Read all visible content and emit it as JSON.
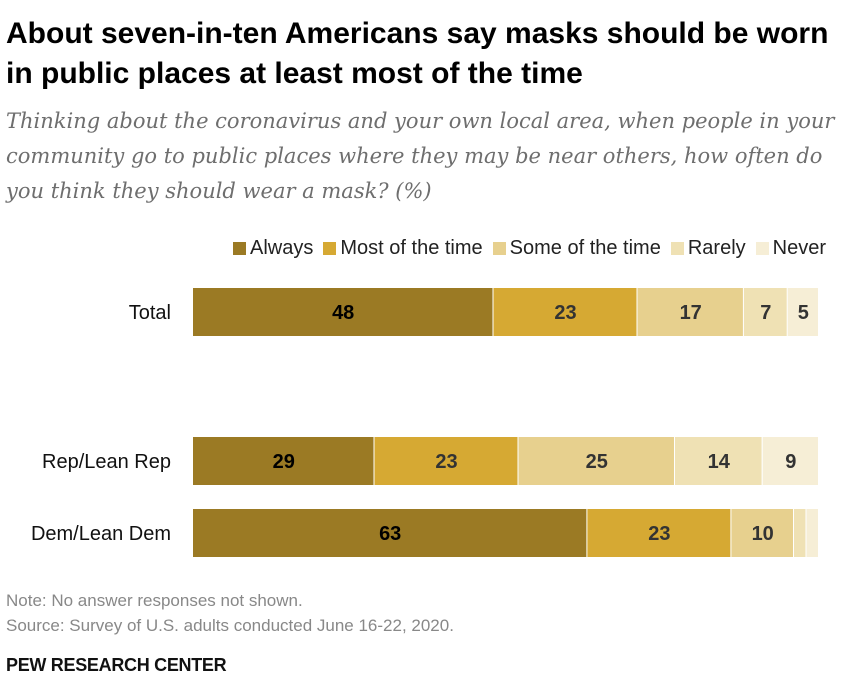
{
  "title": "About seven-in-ten Americans say masks should be worn in public places at least most of the time",
  "subtitle": "Thinking about the coronavirus and your own local area, when people in your community go to public places where they may be near others, how often do you think they should wear a mask? (%)",
  "note": "Note: No answer responses not shown.",
  "source": "Source: Survey of U.S. adults conducted June 16-22, 2020.",
  "brand": "PEW RESEARCH CENTER",
  "chart_data": {
    "type": "bar",
    "orientation": "horizontal",
    "stacked": true,
    "categories": [
      "Total",
      "Rep/Lean Rep",
      "Dem/Lean Dem"
    ],
    "series": [
      {
        "name": "Always",
        "values": [
          48,
          29,
          63
        ],
        "color": "#9b7a24"
      },
      {
        "name": "Most of the time",
        "values": [
          23,
          23,
          23
        ],
        "color": "#d6a933"
      },
      {
        "name": "Some of the time",
        "values": [
          17,
          25,
          10
        ],
        "color": "#e7d08e"
      },
      {
        "name": "Rarely",
        "values": [
          7,
          14,
          2
        ],
        "color": "#efe1b4"
      },
      {
        "name": "Never",
        "values": [
          5,
          9,
          2
        ],
        "color": "#f6eed6"
      }
    ],
    "data_labels": [
      [
        "48",
        "23",
        "17",
        "7",
        "5"
      ],
      [
        "29",
        "23",
        "25",
        "14",
        "9"
      ],
      [
        "63",
        "23",
        "10",
        "",
        ""
      ]
    ],
    "legend_position": "top-right",
    "xlim": [
      0,
      100
    ],
    "grid": false
  }
}
